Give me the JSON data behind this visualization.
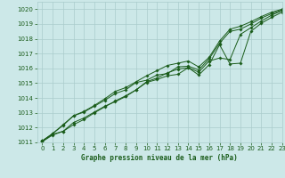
{
  "title": "Graphe pression niveau de la mer (hPa)",
  "bg_color": "#cce8e8",
  "grid_color": "#aacccc",
  "line_color": "#1a5c1a",
  "xlim": [
    -0.5,
    23
  ],
  "ylim": [
    1011,
    1020.5
  ],
  "yticks": [
    1011,
    1012,
    1013,
    1014,
    1015,
    1016,
    1017,
    1018,
    1019,
    1020
  ],
  "xticks": [
    0,
    1,
    2,
    3,
    4,
    5,
    6,
    7,
    8,
    9,
    10,
    11,
    12,
    13,
    14,
    15,
    16,
    17,
    18,
    19,
    20,
    21,
    22,
    23
  ],
  "lines": [
    [
      1011.1,
      1011.55,
      1011.75,
      1012.35,
      1012.65,
      1013.05,
      1013.45,
      1013.75,
      1014.1,
      1014.55,
      1015.05,
      1015.25,
      1015.5,
      1015.6,
      1016.05,
      1015.55,
      1016.25,
      1017.6,
      1016.3,
      1016.35,
      1018.5,
      1019.05,
      1019.45,
      1019.8
    ],
    [
      1011.05,
      1011.5,
      1011.75,
      1012.2,
      1012.55,
      1013.0,
      1013.4,
      1013.8,
      1014.15,
      1014.55,
      1015.1,
      1015.35,
      1015.7,
      1015.95,
      1016.05,
      1015.75,
      1016.5,
      1016.7,
      1016.6,
      1018.3,
      1018.75,
      1019.2,
      1019.6,
      1019.9
    ],
    [
      1011.1,
      1011.6,
      1012.2,
      1012.8,
      1013.05,
      1013.45,
      1013.85,
      1014.3,
      1014.55,
      1015.05,
      1015.2,
      1015.55,
      1015.65,
      1016.1,
      1016.15,
      1015.9,
      1016.65,
      1017.7,
      1018.5,
      1018.65,
      1019.0,
      1019.4,
      1019.7,
      1019.95
    ],
    [
      1011.1,
      1011.6,
      1012.15,
      1012.8,
      1013.1,
      1013.5,
      1013.95,
      1014.45,
      1014.7,
      1015.1,
      1015.5,
      1015.85,
      1016.2,
      1016.35,
      1016.5,
      1016.1,
      1016.75,
      1017.85,
      1018.65,
      1018.85,
      1019.15,
      1019.5,
      1019.8,
      1020.0
    ]
  ]
}
